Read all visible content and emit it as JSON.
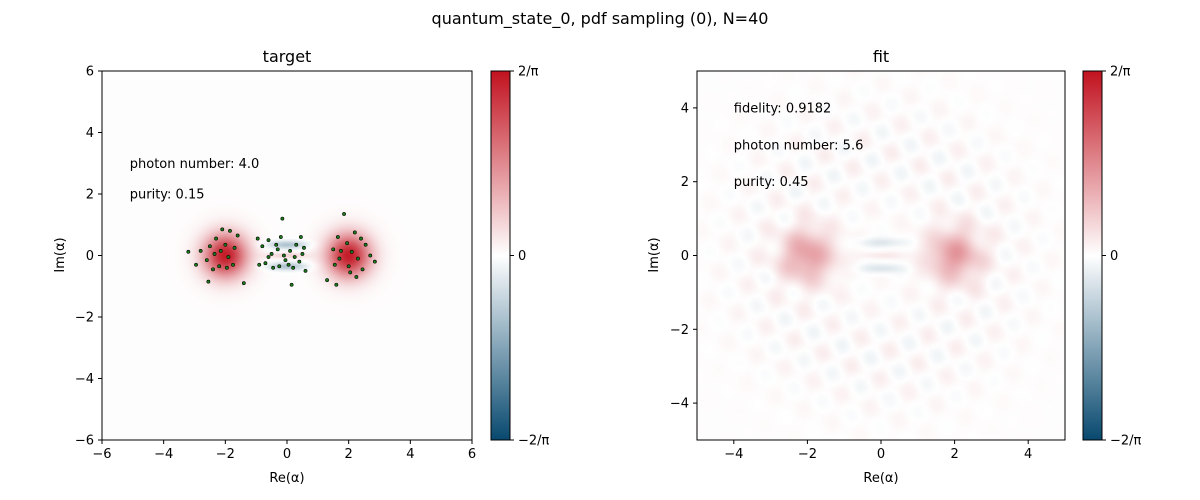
{
  "figure": {
    "title": "quantum_state_0, pdf sampling (0), N=40"
  },
  "chart_data": [
    {
      "type": "heatmap",
      "title": "target",
      "xlabel": "Re(α)",
      "ylabel": "Im(α)",
      "xlim": [
        -6,
        6
      ],
      "ylim": [
        -6,
        6
      ],
      "x_ticks": [
        -6,
        -4,
        -2,
        0,
        2,
        4,
        6
      ],
      "y_ticks": [
        -6,
        -4,
        -2,
        0,
        2,
        4,
        6
      ],
      "colorbar": {
        "ticks": [
          "2/π",
          "0",
          "−2/π"
        ],
        "low_color": "#08496f",
        "mid_color": "#ffffff",
        "high_color": "#c1121f"
      },
      "annotations": [
        {
          "text": "photon number: 4.0",
          "x": -5.1,
          "y": 3.0
        },
        {
          "text": "purity: 0.15",
          "x": -5.1,
          "y": 2.0
        }
      ],
      "lobes": [
        {
          "x": -2,
          "y": 0,
          "sigma": 0.5,
          "amp": 0.95
        },
        {
          "x": 2,
          "y": 0,
          "sigma": 0.5,
          "amp": 0.95
        }
      ],
      "fringes": {
        "x_range": [
          -0.9,
          0.9
        ],
        "y_rows": [
          0.35,
          -0.35
        ],
        "amp": -0.35
      },
      "samples": [
        [
          -2.1,
          0.85
        ],
        [
          -1.85,
          0.8
        ],
        [
          -2.3,
          0.55
        ],
        [
          -1.6,
          0.65
        ],
        [
          -2.5,
          0.3
        ],
        [
          -2.0,
          0.35
        ],
        [
          -1.7,
          0.25
        ],
        [
          -2.8,
          0.15
        ],
        [
          -3.2,
          0.12
        ],
        [
          -2.35,
          0.05
        ],
        [
          -1.9,
          -0.05
        ],
        [
          -2.6,
          -0.15
        ],
        [
          -2.2,
          -0.35
        ],
        [
          -1.75,
          -0.3
        ],
        [
          -2.95,
          -0.3
        ],
        [
          -2.4,
          -0.45
        ],
        [
          -2.55,
          -0.85
        ],
        [
          -1.4,
          -0.9
        ],
        [
          -1.95,
          -0.4
        ],
        [
          -2.15,
          0.15
        ],
        [
          1.85,
          1.35
        ],
        [
          2.2,
          0.75
        ],
        [
          1.65,
          0.6
        ],
        [
          2.4,
          0.55
        ],
        [
          1.95,
          0.4
        ],
        [
          2.55,
          0.35
        ],
        [
          1.5,
          0.2
        ],
        [
          2.1,
          0.12
        ],
        [
          2.7,
          0.0
        ],
        [
          1.7,
          -0.1
        ],
        [
          2.3,
          -0.1
        ],
        [
          2.85,
          -0.2
        ],
        [
          1.55,
          -0.3
        ],
        [
          2.0,
          -0.35
        ],
        [
          2.45,
          -0.45
        ],
        [
          1.3,
          -0.8
        ],
        [
          1.6,
          -0.95
        ],
        [
          2.25,
          -0.7
        ],
        [
          2.05,
          -0.55
        ],
        [
          1.75,
          0.15
        ],
        [
          -0.15,
          1.2
        ],
        [
          -0.95,
          0.55
        ],
        [
          -0.6,
          0.5
        ],
        [
          -0.2,
          0.6
        ],
        [
          0.45,
          0.6
        ],
        [
          -0.8,
          0.3
        ],
        [
          -0.3,
          0.2
        ],
        [
          0.1,
          0.15
        ],
        [
          0.55,
          0.25
        ],
        [
          -0.5,
          0.05
        ],
        [
          0.25,
          -0.05
        ],
        [
          -0.05,
          -0.15
        ],
        [
          0.4,
          -0.2
        ],
        [
          -0.7,
          -0.25
        ],
        [
          -0.25,
          -0.35
        ],
        [
          0.2,
          -0.4
        ],
        [
          -0.9,
          -0.3
        ],
        [
          0.05,
          -0.3
        ],
        [
          -0.45,
          -0.4
        ],
        [
          0.6,
          -0.5
        ],
        [
          0.15,
          -0.95
        ],
        [
          -0.35,
          0.35
        ],
        [
          0.3,
          0.35
        ],
        [
          -0.1,
          0.0
        ],
        [
          0.5,
          0.05
        ],
        [
          -0.6,
          -0.05
        ]
      ]
    },
    {
      "type": "heatmap",
      "title": "fit",
      "xlabel": "Re(α)",
      "ylabel": "Im(α)",
      "xlim": [
        -5,
        5
      ],
      "ylim": [
        -5,
        5
      ],
      "x_ticks": [
        -4,
        -2,
        0,
        2,
        4
      ],
      "y_ticks": [
        -4,
        -2,
        0,
        2,
        4
      ],
      "colorbar": {
        "ticks": [
          "2/π",
          "0",
          "−2/π"
        ],
        "low_color": "#08496f",
        "mid_color": "#ffffff",
        "high_color": "#c1121f"
      },
      "annotations": [
        {
          "text": "fidelity: 0.9182",
          "x": -4.0,
          "y": 4.0
        },
        {
          "text": "photon number: 5.6",
          "x": -4.0,
          "y": 3.0
        },
        {
          "text": "purity: 0.45",
          "x": -4.0,
          "y": 2.0
        }
      ],
      "lobes": [
        {
          "x": -2,
          "y": 0,
          "sigma": 0.5,
          "amp": 0.4
        },
        {
          "x": 2,
          "y": 0,
          "sigma": 0.5,
          "amp": 0.4
        }
      ],
      "fringes": {
        "x_range": [
          -1.0,
          1.0
        ],
        "y_rows": [
          0.35,
          -0.35
        ],
        "amp": -0.15
      },
      "ripples": {
        "amp": 0.07,
        "radius": 4.2
      }
    }
  ]
}
